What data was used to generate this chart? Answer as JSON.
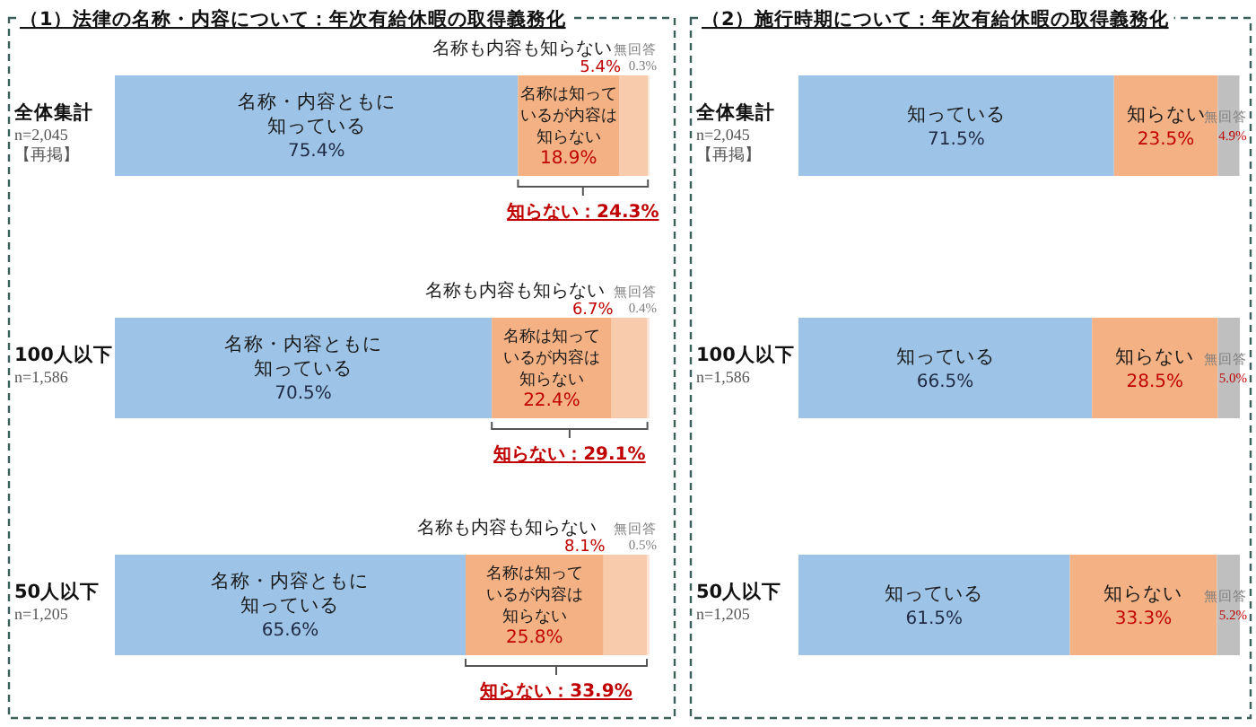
{
  "chart_data": [
    {
      "type": "bar",
      "orientation": "horizontal",
      "stacked": true,
      "title": "（1）法律の名称・内容について：年次有給休暇の取得義務化",
      "categories": [
        "全体集計\nn=2,045\n【再掲】",
        "100人以下\nn=1,586",
        "50人以下\nn=1,205"
      ],
      "xlim": [
        0,
        100
      ],
      "tick_labels": false,
      "series": [
        {
          "name": "名称・内容ともに知っている",
          "color": "#9dc3e6",
          "values": [
            75.4,
            70.5,
            65.6
          ],
          "value_labels": [
            "75.4%",
            "70.5%",
            "65.6%"
          ]
        },
        {
          "name": "名称は知っているが内容は知らない",
          "color": "#f4b183",
          "values": [
            18.9,
            22.4,
            25.8
          ],
          "value_labels": [
            "18.9%",
            "22.4%",
            "25.8%"
          ]
        },
        {
          "name": "名称も内容も知らない",
          "color": "#f8cbad",
          "values": [
            5.4,
            6.7,
            8.1
          ],
          "value_labels": [
            "5.4%",
            "6.7%",
            "8.1%"
          ]
        },
        {
          "name": "無回答",
          "color": "#fbe5d6",
          "values": [
            0.3,
            0.4,
            0.5
          ],
          "value_labels": [
            "0.3%",
            "0.4%",
            "0.5%"
          ]
        }
      ],
      "annotations": [
        "知らない：24.3%",
        "知らない：29.1%",
        "知らない：33.9%"
      ]
    },
    {
      "type": "bar",
      "orientation": "horizontal",
      "stacked": true,
      "title": "（2）施行時期について：年次有給休暇の取得義務化",
      "categories": [
        "全体集計\nn=2,045\n【再掲】",
        "100人以下\nn=1,586",
        "50人以下\nn=1,205"
      ],
      "xlim": [
        0,
        100
      ],
      "tick_labels": false,
      "series": [
        {
          "name": "知っている",
          "color": "#9dc3e6",
          "values": [
            71.5,
            66.5,
            61.5
          ],
          "value_labels": [
            "71.5%",
            "66.5%",
            "61.5%"
          ]
        },
        {
          "name": "知らない",
          "color": "#f4b183",
          "values": [
            23.5,
            28.5,
            33.3
          ],
          "value_labels": [
            "23.5%",
            "28.5%",
            "33.3%"
          ]
        },
        {
          "name": "無回答",
          "color": "#bfbfbf",
          "values": [
            4.9,
            5.0,
            5.2
          ],
          "value_labels": [
            "4.9%",
            "5.0%",
            "5.2%"
          ]
        }
      ]
    }
  ]
}
